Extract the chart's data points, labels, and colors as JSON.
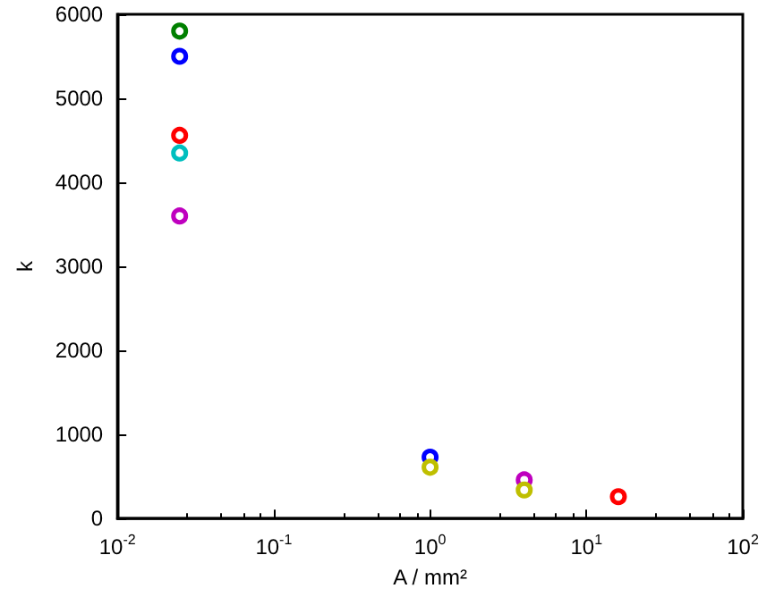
{
  "chart_data": {
    "type": "scatter",
    "xlabel": "A / mm²",
    "ylabel": "k",
    "x": [
      0.025,
      1,
      4,
      16
    ],
    "log": "x",
    "xlim": [
      0.01,
      100
    ],
    "ylim": [
      0,
      6000
    ],
    "xticks": [
      {
        "value": 0.01,
        "label": "10$^{-2}$"
      },
      {
        "value": 0.1,
        "label": "10$^{-1}$"
      },
      {
        "value": 1,
        "label": "10$^{0}$"
      },
      {
        "value": 10,
        "label": "10$^{1}$"
      },
      {
        "value": 100,
        "label": "10$^{2}$"
      }
    ],
    "yticks": [
      0,
      1000,
      2000,
      3000,
      4000,
      5000,
      6000
    ],
    "grid": false,
    "marker": "circle",
    "series": [
      {
        "color": "#008000",
        "values": [
          5800,
          null,
          null,
          null
        ]
      },
      {
        "color": "#0000ff",
        "values": [
          5500,
          730,
          null,
          null
        ]
      },
      {
        "color": "#ff0000",
        "values": [
          4560,
          null,
          null,
          260
        ]
      },
      {
        "color": "#00bfbf",
        "values": [
          4350,
          null,
          null,
          null
        ]
      },
      {
        "color": "#bf00bf",
        "values": [
          3600,
          null,
          460,
          null
        ]
      },
      {
        "color": "#bfbf00",
        "values": [
          null,
          610,
          340,
          null
        ]
      }
    ]
  }
}
